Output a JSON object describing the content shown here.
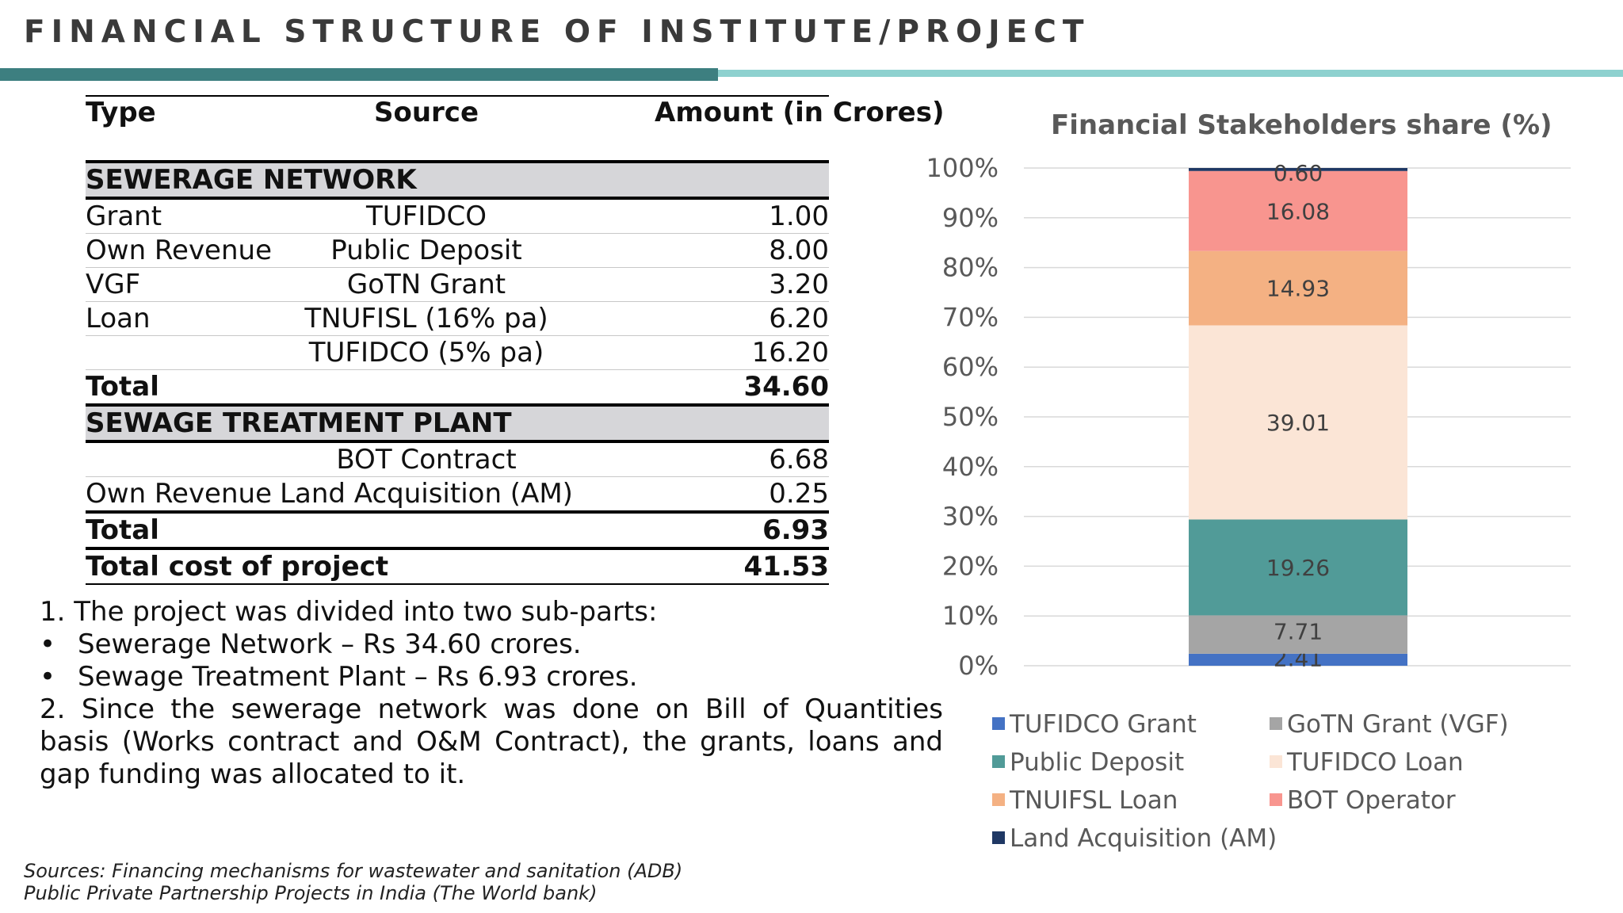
{
  "title": "FINANCIAL STRUCTURE OF INSTITUTE/PROJECT",
  "table": {
    "headers": {
      "type": "Type",
      "source": "Source",
      "amount": "Amount (in Crores)"
    },
    "sections": [
      {
        "name": "SEWERAGE NETWORK",
        "rows": [
          {
            "type": "Grant",
            "source": "TUFIDCO",
            "amount": "1.00"
          },
          {
            "type": "Own Revenue",
            "source": "Public Deposit",
            "amount": "8.00"
          },
          {
            "type": "VGF",
            "source": "GoTN Grant",
            "amount": "3.20"
          },
          {
            "type": "Loan",
            "source": "TNUFISL (16% pa)",
            "amount": "6.20"
          },
          {
            "type": "",
            "source": "TUFIDCO (5% pa)",
            "amount": "16.20"
          }
        ],
        "total_label": "Total",
        "total": "34.60"
      },
      {
        "name": "SEWAGE TREATMENT PLANT",
        "rows": [
          {
            "type": "",
            "source": "BOT Contract",
            "amount": "6.68"
          },
          {
            "type": "Own Revenue",
            "source": "Land Acquisition (AM)",
            "amount": "0.25"
          }
        ],
        "total_label": "Total",
        "total": "6.93"
      }
    ],
    "grand_total_label": "Total cost of project",
    "grand_total": "41.53"
  },
  "notes": {
    "line1": "1. The project was divided into two sub-parts:",
    "bullet_char": "•",
    "bullet1": "Sewerage Network – Rs 34.60 crores.",
    "bullet2": "Sewage Treatment Plant – Rs 6.93 crores.",
    "line2": "2. Since the sewerage network was done on Bill of Quantities basis (Works contract and O&M Contract), the grants, loans and gap funding was allocated to it."
  },
  "sources": {
    "line1": "Sources: Financing mechanisms for wastewater and sanitation (ADB)",
    "line2": "Public Private Partnership Projects in India (The World bank)"
  },
  "chart_data": {
    "type": "bar",
    "stacked": true,
    "title": "Financial Stakeholders share (%)",
    "ylim": [
      0,
      100
    ],
    "yticks": [
      0,
      10,
      20,
      30,
      40,
      50,
      60,
      70,
      80,
      90,
      100
    ],
    "ytick_labels": [
      "0%",
      "10%",
      "20%",
      "30%",
      "40%",
      "50%",
      "60%",
      "70%",
      "80%",
      "90%",
      "100%"
    ],
    "grid": true,
    "legend_position": "bottom",
    "series": [
      {
        "name": "TUFIDCO Grant",
        "value": 2.41,
        "label": "2.41",
        "color": "#4472c4"
      },
      {
        "name": "GoTN Grant (VGF)",
        "value": 7.71,
        "label": "7.71",
        "color": "#a5a5a5"
      },
      {
        "name": "Public Deposit",
        "value": 19.26,
        "label": "19.26",
        "color": "#519b98"
      },
      {
        "name": "TUFIDCO Loan",
        "value": 39.01,
        "label": "39.01",
        "color": "#fbe5d6"
      },
      {
        "name": "TNUIFSL Loan",
        "value": 14.93,
        "label": "14.93",
        "color": "#f4b183"
      },
      {
        "name": "BOT Operator",
        "value": 16.08,
        "label": "16.08",
        "color": "#f8958f"
      },
      {
        "name": "Land Acquisition (AM)",
        "value": 0.6,
        "label": "0.60",
        "color": "#1f3864"
      }
    ]
  },
  "colors": {
    "title_bar_dark": "#3d7f80",
    "title_bar_light": "#8ed1cf",
    "section_bg": "#d6d6d9"
  }
}
